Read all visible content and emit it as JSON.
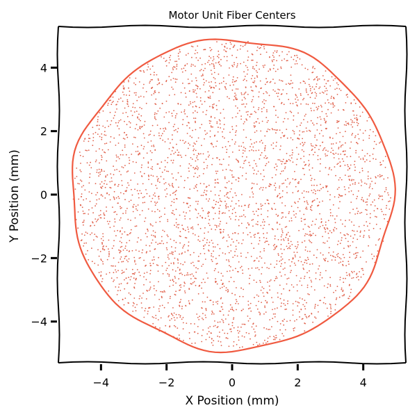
{
  "chart_data": {
    "type": "scatter",
    "title": "Motor Unit Fiber Centers",
    "xlabel": "X Position (mm)",
    "ylabel": "Y Position (mm)",
    "xlim": [
      -5.3,
      5.3
    ],
    "ylim": [
      -5.3,
      5.3
    ],
    "xticks": [
      -4,
      -2,
      0,
      2,
      4
    ],
    "yticks": [
      -4,
      -2,
      0,
      2,
      4
    ],
    "xtick_labels": [
      "−4",
      "−2",
      "0",
      "2",
      "4"
    ],
    "ytick_labels": [
      "−4",
      "−2",
      "0",
      "2",
      "4"
    ],
    "grid": false,
    "legend": "none",
    "boundary": {
      "shape": "circle",
      "center": [
        0,
        0
      ],
      "radius_mm": 4.9
    },
    "points": {
      "count": 3500,
      "distribution": "uniform-dense within boundary",
      "marker_size": "small"
    },
    "colors": {
      "boundary": "#f05a40",
      "points": "#e0604a",
      "axes": "#000000"
    }
  }
}
